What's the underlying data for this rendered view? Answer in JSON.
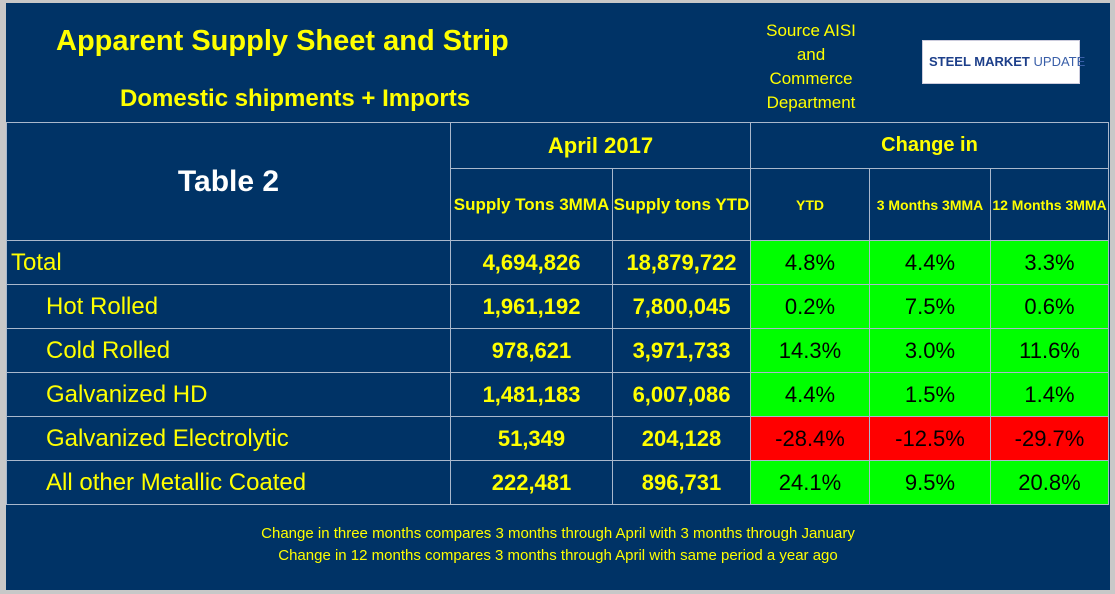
{
  "header": {
    "title": "Apparent Supply Sheet and Strip",
    "subtitle": "Domestic shipments + Imports",
    "source_lines": [
      "Source AISI",
      "and",
      "Commerce",
      "Department"
    ],
    "logo": {
      "text_bold": "STEEL MARKET",
      "text_light": "UPDATE"
    }
  },
  "table": {
    "label_header": "Table 2",
    "group1": "April 2017",
    "group2": "Change in",
    "columns": [
      "Supply Tons 3MMA",
      "Supply tons YTD",
      "YTD",
      "3 Months 3MMA",
      "12 Months 3MMA"
    ],
    "rows": [
      {
        "label": "Total",
        "tons_3mma": "4,694,826",
        "tons_ytd": "18,879,722",
        "ytd": "4.8%",
        "m3": "4.4%",
        "m12": "3.3%",
        "signs": [
          "pos",
          "pos",
          "pos"
        ]
      },
      {
        "label": "Hot Rolled",
        "tons_3mma": "1,961,192",
        "tons_ytd": "7,800,045",
        "ytd": "0.2%",
        "m3": "7.5%",
        "m12": "0.6%",
        "signs": [
          "pos",
          "pos",
          "pos"
        ]
      },
      {
        "label": "Cold Rolled",
        "tons_3mma": "978,621",
        "tons_ytd": "3,971,733",
        "ytd": "14.3%",
        "m3": "3.0%",
        "m12": "11.6%",
        "signs": [
          "pos",
          "pos",
          "pos"
        ]
      },
      {
        "label": "Galvanized HD",
        "tons_3mma": "1,481,183",
        "tons_ytd": "6,007,086",
        "ytd": "4.4%",
        "m3": "1.5%",
        "m12": "1.4%",
        "signs": [
          "pos",
          "pos",
          "pos"
        ]
      },
      {
        "label": "Galvanized Electrolytic",
        "tons_3mma": "51,349",
        "tons_ytd": "204,128",
        "ytd": "-28.4%",
        "m3": "-12.5%",
        "m12": "-29.7%",
        "signs": [
          "neg",
          "neg",
          "neg"
        ]
      },
      {
        "label": "All other Metallic Coated",
        "tons_3mma": "222,481",
        "tons_ytd": "896,731",
        "ytd": "24.1%",
        "m3": "9.5%",
        "m12": "20.8%",
        "signs": [
          "pos",
          "pos",
          "pos"
        ]
      }
    ]
  },
  "notes": [
    "Change in three months compares 3 months through April with 3 months through January",
    "Change in 12 months compares 3 months through April with same period a year ago"
  ],
  "colors": {
    "background": "#003366",
    "text": "#ffff00",
    "positive": "#00ff00",
    "negative": "#ff0000"
  }
}
